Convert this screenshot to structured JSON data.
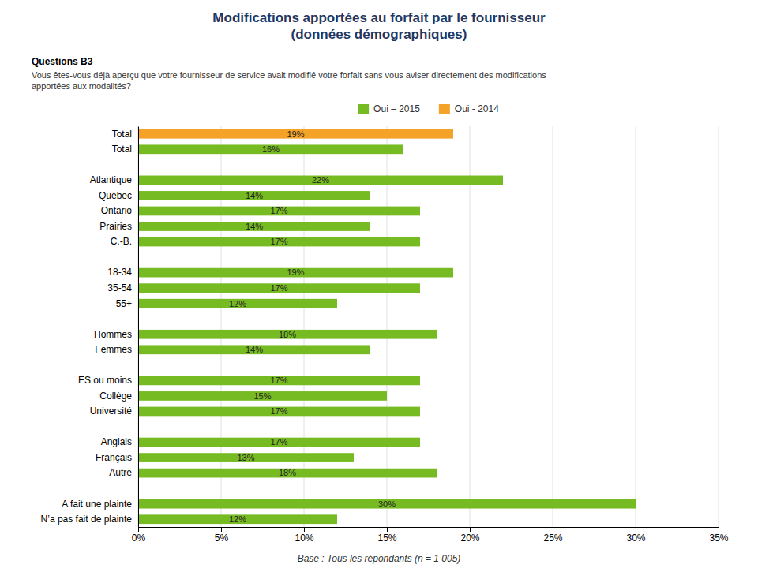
{
  "chart_data": {
    "type": "bar",
    "orientation": "horizontal",
    "title": "Modifications apportées au forfait par le fournisseur\n(données démographiques)",
    "subtitle": "Questions B3",
    "annotations": [
      "Vous êtes-vous déjà aperçu que votre fournisseur de service avait modifié votre forfait sans vous aviser directement des modifications\napportées aux modalités?",
      "Base : Tous les répondants (n = 1 005)"
    ],
    "categories": [
      "N’a pas fait de plainte",
      "A fait une plainte",
      null,
      "Autre",
      "Français",
      "Anglais",
      null,
      "Université",
      "Collège",
      "ES ou moins",
      null,
      "Femmes",
      "Hommes",
      null,
      "55+",
      "35-54",
      "18-34",
      null,
      "C.-B.",
      "Prairies",
      "Ontario",
      "Québec",
      "Atlantique",
      null,
      "Total",
      "Total"
    ],
    "series": [
      {
        "name": "Oui – 2015",
        "color": "#77bb22",
        "values": [
          12,
          30,
          null,
          18,
          13,
          17,
          null,
          17,
          15,
          17,
          null,
          14,
          18,
          null,
          12,
          17,
          19,
          null,
          17,
          14,
          17,
          14,
          22,
          null,
          16,
          null
        ],
        "value_labels": [
          "12%",
          "30%",
          null,
          "18%",
          "13%",
          "17%",
          null,
          "17%",
          "15%",
          "17%",
          null,
          "14%",
          "18%",
          null,
          "12%",
          "17%",
          "19%",
          null,
          "17%",
          "14%",
          "17%",
          "14%",
          "22%",
          null,
          "16%",
          null
        ]
      },
      {
        "name": "Oui - 2014",
        "color": "#f5a228",
        "values": [
          null,
          null,
          null,
          null,
          null,
          null,
          null,
          null,
          null,
          null,
          null,
          null,
          null,
          null,
          null,
          null,
          null,
          null,
          null,
          null,
          null,
          null,
          null,
          null,
          null,
          19
        ],
        "value_labels": [
          null,
          null,
          null,
          null,
          null,
          null,
          null,
          null,
          null,
          null,
          null,
          null,
          null,
          null,
          null,
          null,
          null,
          null,
          null,
          null,
          null,
          null,
          null,
          null,
          null,
          "19%"
        ]
      }
    ],
    "xlim": [
      0,
      35
    ],
    "xticks": [
      {
        "value": 0,
        "label": "0%"
      },
      {
        "value": 5,
        "label": "5%"
      },
      {
        "value": 10,
        "label": "10%"
      },
      {
        "value": 15,
        "label": "15%"
      },
      {
        "value": 20,
        "label": "20%"
      },
      {
        "value": 25,
        "label": "25%"
      },
      {
        "value": 30,
        "label": "30%"
      },
      {
        "value": 35,
        "label": "35%"
      }
    ],
    "grid": true,
    "legend": "top",
    "data_labels": true
  }
}
